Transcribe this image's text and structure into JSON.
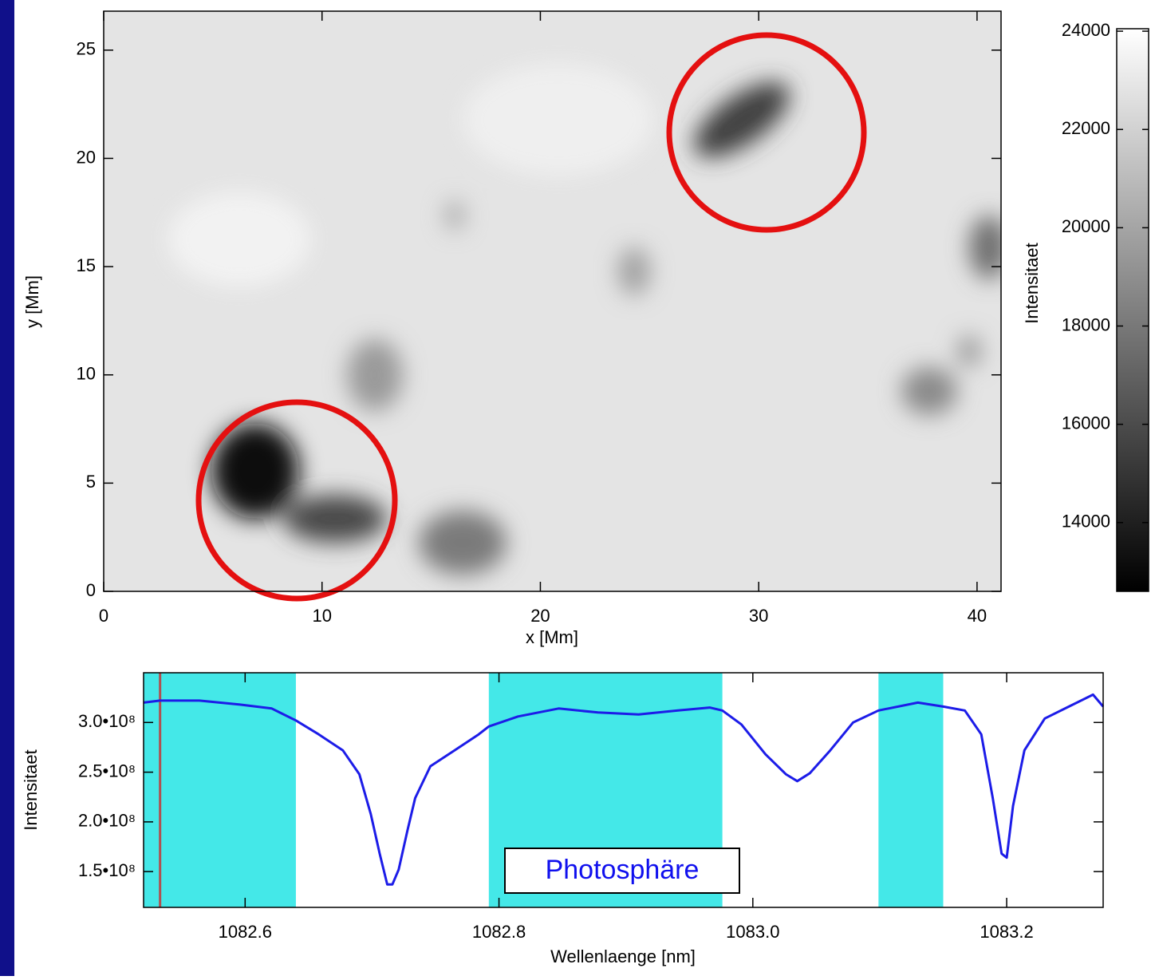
{
  "chart_data": [
    {
      "type": "heatmap",
      "xlabel": "x [Mm]",
      "ylabel": "y [Mm]",
      "xlim": [
        0,
        41.1
      ],
      "ylim": [
        0,
        26.8
      ],
      "xticks": [
        0,
        10,
        20,
        30,
        40
      ],
      "yticks": [
        0,
        5,
        10,
        15,
        20,
        25
      ],
      "colorbar": {
        "label": "Intensitaet",
        "lim": [
          12600,
          24050
        ],
        "ticks": [
          14000,
          16000,
          18000,
          20000,
          22000,
          24000
        ],
        "colors": [
          "#000000",
          "#ffffff"
        ]
      }
    },
    {
      "type": "line",
      "xlabel": "Wellenlaenge [nm]",
      "ylabel": "Intensitaet",
      "xlim": [
        1082.52,
        1083.276
      ],
      "ylim": [
        114000000,
        350000000
      ],
      "xticks": [
        1082.6,
        1082.8,
        {
          "value": 1083.0,
          "label": "1083.0"
        },
        1083.2
      ],
      "yticks": [
        {
          "value": 150000000,
          "label": "1.5•10⁸"
        },
        {
          "value": 200000000,
          "label": "2.0•10⁸"
        },
        {
          "value": 250000000,
          "label": "2.5•10⁸"
        },
        {
          "value": 300000000,
          "label": "3.0•10⁸"
        }
      ],
      "shaded_regions": [
        [
          1082.52,
          1082.64
        ],
        [
          1082.792,
          1082.976
        ],
        [
          1083.099,
          1083.15
        ]
      ],
      "shade_color": "#44e8e8",
      "marker_x": 1082.533,
      "marker_color": "#b05050",
      "annotation": "Photosphäre",
      "x": [
        1082.52,
        1082.533,
        1082.564,
        1082.596,
        1082.621,
        1082.64,
        1082.658,
        1082.677,
        1082.69,
        1082.699,
        1082.706,
        1082.712,
        1082.716,
        1082.721,
        1082.728,
        1082.734,
        1082.746,
        1082.765,
        1082.784,
        1082.792,
        1082.815,
        1082.847,
        1082.878,
        1082.91,
        1082.941,
        1082.966,
        1082.976,
        1082.991,
        1083.01,
        1083.026,
        1083.035,
        1083.045,
        1083.061,
        1083.079,
        1083.099,
        1083.13,
        1083.15,
        1083.167,
        1083.18,
        1083.189,
        1083.196,
        1083.2,
        1083.205,
        1083.214,
        1083.23,
        1083.249,
        1083.268,
        1083.276
      ],
      "series": [
        {
          "color": "#1c1ce8",
          "values": [
            320000000,
            322000000,
            322000000,
            318000000,
            314000000,
            302000000,
            288000000,
            272000000,
            248000000,
            208000000,
            168000000,
            137000000,
            137000000,
            152000000,
            192000000,
            224000000,
            256000000,
            272000000,
            288000000,
            296000000,
            306000000,
            314000000,
            310000000,
            308000000,
            312000000,
            315000000,
            312000000,
            298000000,
            268000000,
            248000000,
            241000000,
            249000000,
            272000000,
            300000000,
            312000000,
            320000000,
            316000000,
            312000000,
            288000000,
            224000000,
            168000000,
            164000000,
            216000000,
            272000000,
            304000000,
            316000000,
            328000000,
            316000000
          ]
        }
      ]
    }
  ]
}
